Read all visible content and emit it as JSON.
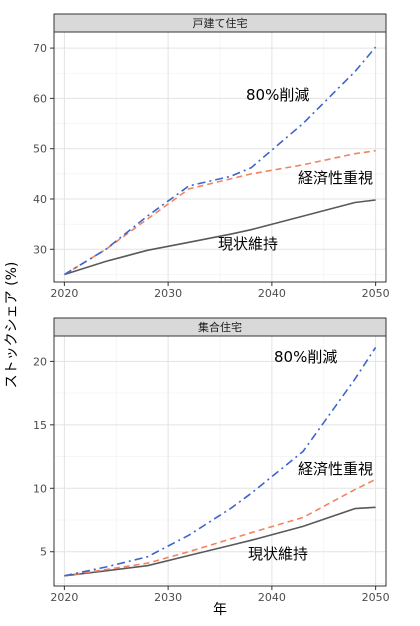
{
  "chart_data": {
    "type": "line",
    "xlabel": "年",
    "ylabel": "ストックシェア (%)",
    "grid": true,
    "legend": "none",
    "x": [
      2020,
      2024,
      2028,
      2032,
      2036,
      2038,
      2043,
      2048,
      2050
    ],
    "panels": [
      {
        "title": "戸建て住宅",
        "xlim": [
          2019,
          2051
        ],
        "ylim": [
          23.5,
          73.2
        ],
        "yticks": [
          30,
          40,
          50,
          60,
          70
        ],
        "xticks": [
          2020,
          2030,
          2040,
          2050
        ],
        "series": [
          {
            "name": "現状維持",
            "color": "#595959",
            "dash": "solid",
            "values": [
              25.0,
              27.6,
              29.8,
              31.4,
              33.0,
              33.9,
              36.6,
              39.3,
              39.8
            ]
          },
          {
            "name": "経済性重視",
            "color": "#f4825f",
            "dash": "dash",
            "values": [
              25.0,
              30.0,
              36.0,
              42.0,
              44.0,
              45.0,
              46.8,
              49.0,
              49.6
            ]
          },
          {
            "name": "80%削減",
            "color": "#3d64cc",
            "dash": "dashdot",
            "values": [
              25.0,
              30.0,
              36.6,
              42.6,
              44.5,
              46.2,
              55.0,
              65.3,
              70.2
            ]
          }
        ]
      },
      {
        "title": "集合住宅",
        "xlim": [
          2019,
          2051
        ],
        "ylim": [
          2.3,
          22.0
        ],
        "yticks": [
          5,
          10,
          15,
          20
        ],
        "xticks": [
          2020,
          2030,
          2040,
          2050
        ],
        "series": [
          {
            "name": "現状維持",
            "color": "#595959",
            "dash": "solid",
            "values": [
              3.1,
              3.5,
              3.9,
              4.7,
              5.5,
              5.9,
              7.0,
              8.4,
              8.5
            ]
          },
          {
            "name": "経済性重視",
            "color": "#f4825f",
            "dash": "dash",
            "values": [
              3.1,
              3.6,
              4.1,
              5.0,
              6.0,
              6.5,
              7.7,
              9.9,
              10.7
            ]
          },
          {
            "name": "80%削減",
            "color": "#3d64cc",
            "dash": "dashdot",
            "values": [
              3.1,
              3.8,
              4.6,
              6.3,
              8.4,
              9.6,
              12.9,
              18.6,
              21.1
            ]
          }
        ]
      }
    ]
  }
}
